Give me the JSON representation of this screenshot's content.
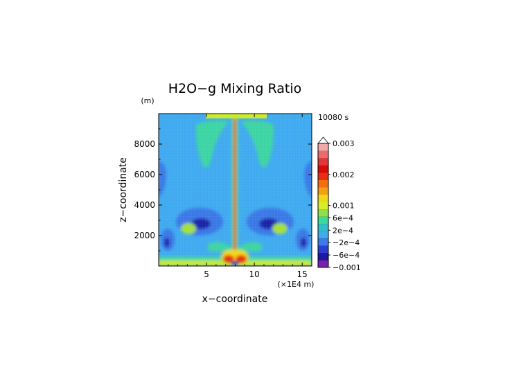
{
  "chart_data": {
    "type": "heatmap",
    "title": "H2O−g Mixing Ratio",
    "xlabel": "x−coordinate",
    "ylabel": "z−coordinate",
    "x_unit": "(×1E4 m)",
    "y_unit": "(m)",
    "time_label": "10080 s",
    "xlim": [
      0,
      16
    ],
    "ylim": [
      0,
      10000
    ],
    "x_ticks": [
      5,
      10,
      15
    ],
    "y_ticks": [
      2000,
      4000,
      6000,
      8000
    ],
    "colorbar": {
      "range": [
        -0.001,
        0.003
      ],
      "tick_labels": [
        {
          "value": 0.003,
          "label": "0.003"
        },
        {
          "value": 0.002,
          "label": "0.002"
        },
        {
          "value": 0.001,
          "label": "0.001"
        },
        {
          "value": 0.0006,
          "label": "6e−4"
        },
        {
          "value": 0.0002,
          "label": "2e−4"
        },
        {
          "value": -0.0002,
          "label": "−2e−4"
        },
        {
          "value": -0.0006,
          "label": "−6e−4"
        },
        {
          "value": -0.001,
          "label": "−0.001"
        }
      ],
      "colors": [
        "#7a1fb0",
        "#1d1aa0",
        "#2a3fd0",
        "#3c7ae8",
        "#3faaf0",
        "#2fc0c8",
        "#40d89a",
        "#90e04a",
        "#d8ec2a",
        "#f0d818",
        "#f0a010",
        "#f07010",
        "#e83010",
        "#d80a0a",
        "#e03838",
        "#ec6a6a",
        "#f4a8a8"
      ]
    }
  }
}
